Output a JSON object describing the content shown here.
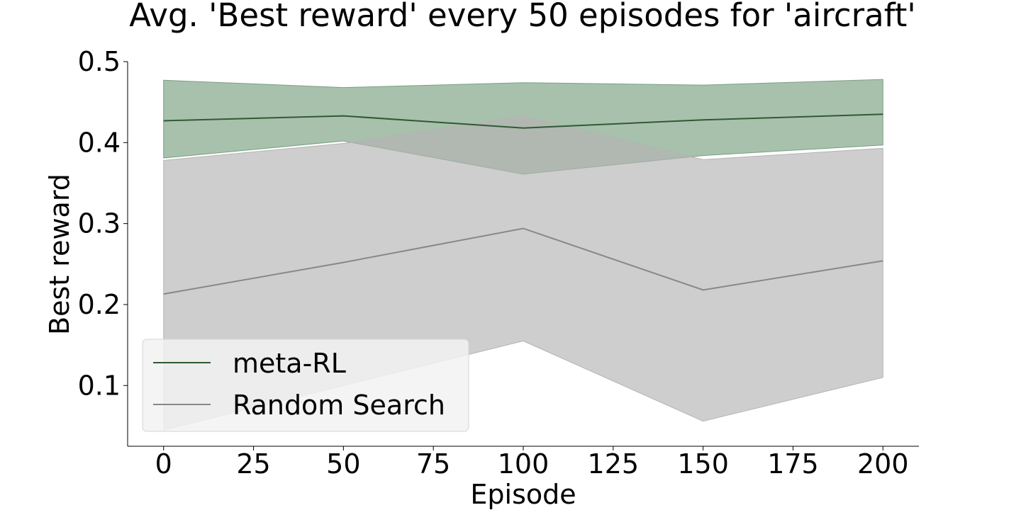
{
  "chart_data": {
    "type": "line",
    "title": "Avg. 'Best reward' every 50 episodes for 'aircraft'",
    "xlabel": "Episode",
    "ylabel": "Best reward",
    "x": [
      0,
      50,
      100,
      150,
      200
    ],
    "xlim": [
      -10,
      210
    ],
    "ylim": [
      0.025,
      0.5
    ],
    "xticks": [
      "0",
      "25",
      "50",
      "75",
      "100",
      "125",
      "150",
      "175",
      "200"
    ],
    "yticks": [
      "0.1",
      "0.2",
      "0.3",
      "0.4",
      "0.5"
    ],
    "grid": false,
    "legend_position": "lower-left",
    "series": [
      {
        "name": "meta-RL",
        "color": "#2f5a34",
        "band_color": "#7a9f80",
        "values": [
          0.427,
          0.433,
          0.418,
          0.428,
          0.435
        ],
        "upper": [
          0.477,
          0.468,
          0.474,
          0.471,
          0.478
        ],
        "lower": [
          0.381,
          0.402,
          0.361,
          0.384,
          0.397
        ]
      },
      {
        "name": "Random Search",
        "color": "#888888",
        "band_color": "#b4b4b4",
        "values": [
          0.213,
          0.252,
          0.294,
          0.218,
          0.254
        ],
        "upper": [
          0.378,
          0.399,
          0.433,
          0.379,
          0.393
        ],
        "lower": [
          0.045,
          0.1,
          0.155,
          0.056,
          0.11
        ]
      }
    ]
  }
}
